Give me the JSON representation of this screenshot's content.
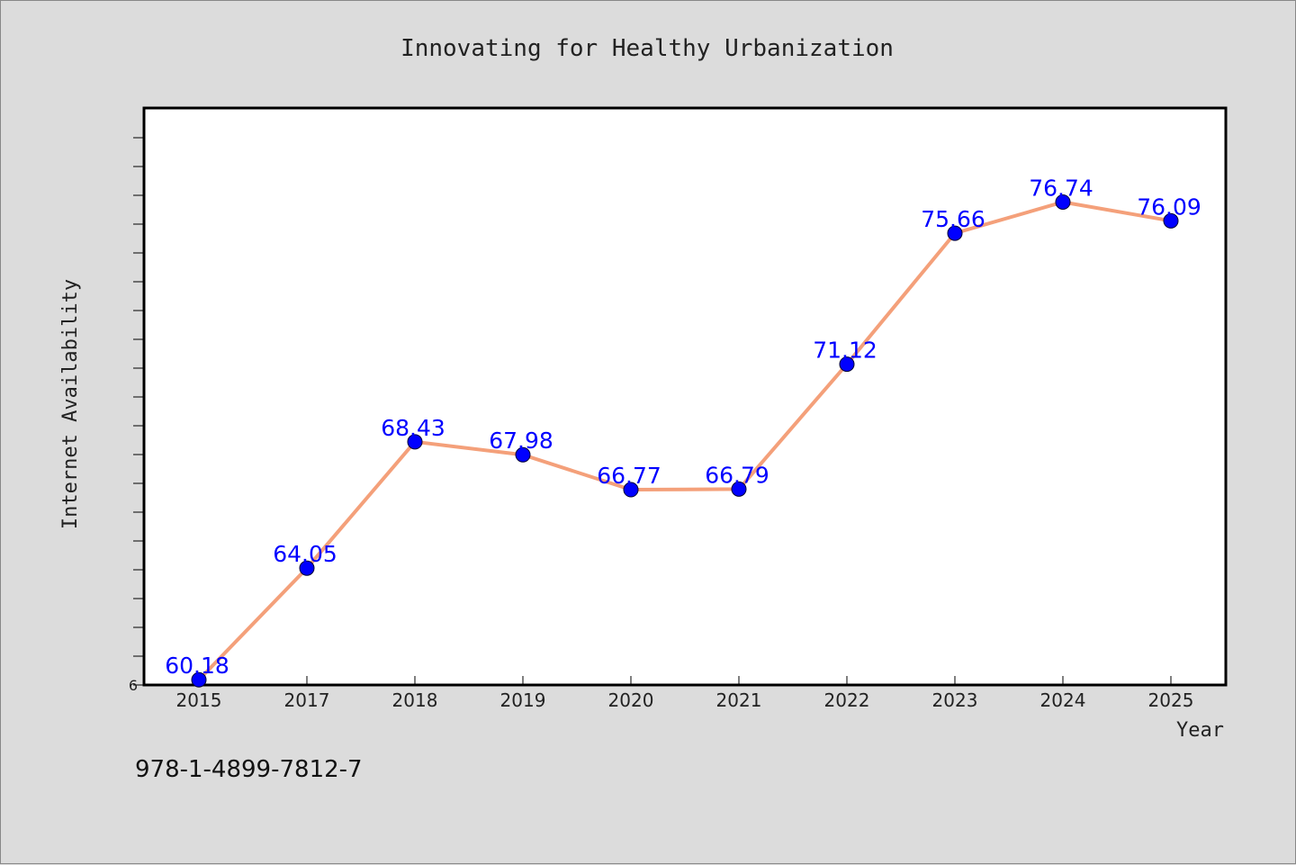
{
  "colors": {
    "background": "#dcdcdc",
    "plot_background": "#ffffff",
    "line": "#f4a07a",
    "marker": "#0000ff",
    "data_label": "#0000ff",
    "axis": "#000000"
  },
  "footer": {
    "code": "978-1-4899-7812-7"
  },
  "chart_data": {
    "type": "line",
    "title": "Innovating for Healthy Urbanization",
    "xlabel": "Year",
    "ylabel": "Internet Availability",
    "categories": [
      "2015",
      "2017",
      "2018",
      "2019",
      "2020",
      "2021",
      "2022",
      "2023",
      "2024",
      "2025"
    ],
    "series": [
      {
        "values": [
          60.18,
          64.05,
          68.43,
          67.98,
          66.77,
          66.79,
          71.12,
          75.66,
          76.74,
          76.09
        ],
        "labels": [
          "60.18",
          "64.05",
          "68.43",
          "67.98",
          "66.77",
          "66.79",
          "71.12",
          "75.66",
          "76.74",
          "76.09"
        ],
        "markers": true
      }
    ],
    "ylim": [
      60,
      80
    ],
    "y_tick_labels": [
      "6"
    ],
    "grid": false,
    "legend": "none"
  }
}
